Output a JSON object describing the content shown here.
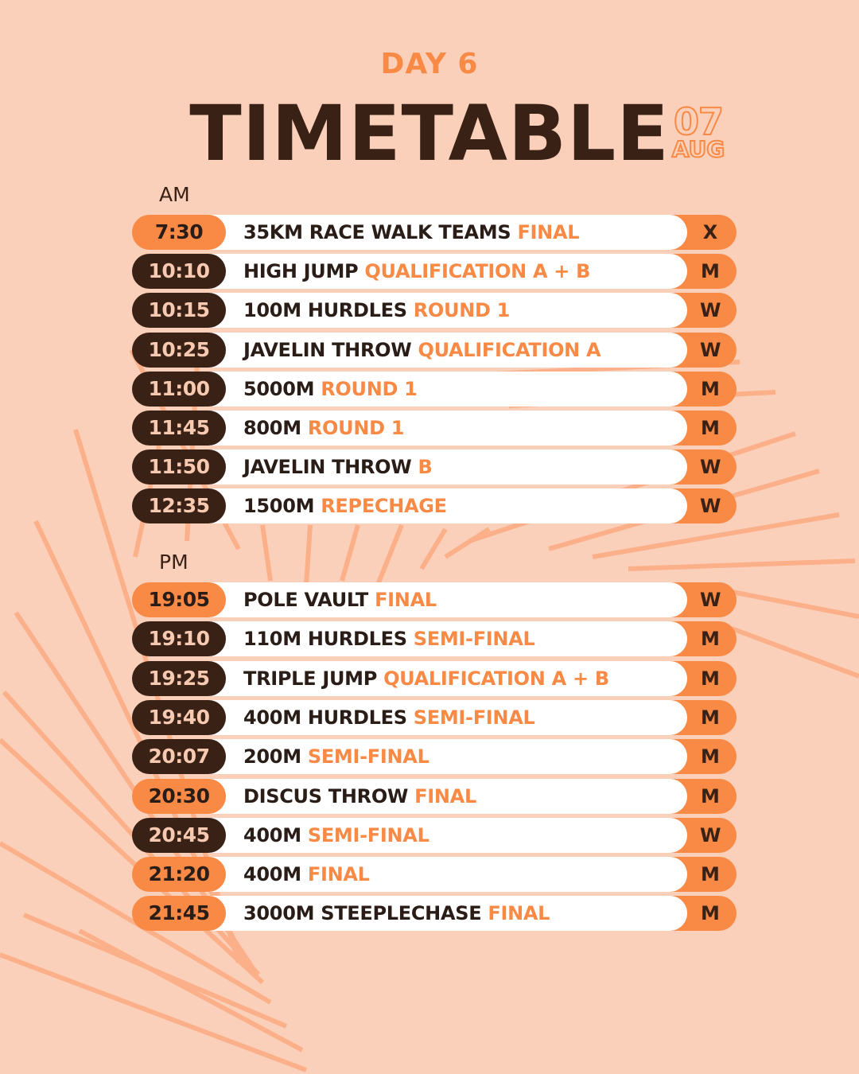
{
  "header": {
    "day": "DAY 6",
    "title": "TIMETABLE",
    "date_day": "07",
    "date_month": "AUG"
  },
  "colors": {
    "background": "#fbd0ba",
    "accent": "#f88a45",
    "dark": "#3a2116",
    "white": "#ffffff"
  },
  "am": {
    "label": "AM",
    "rows": [
      {
        "time": "7:30",
        "event": "35KM RACE WALK TEAMS",
        "stage": "FINAL",
        "category": "X",
        "highlight": true
      },
      {
        "time": "10:10",
        "event": "HIGH JUMP",
        "stage": "QUALIFICATION A + B",
        "category": "M",
        "highlight": false
      },
      {
        "time": "10:15",
        "event": "100M HURDLES",
        "stage": "ROUND 1",
        "category": "W",
        "highlight": false
      },
      {
        "time": "10:25",
        "event": "JAVELIN THROW",
        "stage": "QUALIFICATION A",
        "category": "W",
        "highlight": false
      },
      {
        "time": "11:00",
        "event": "5000M",
        "stage": "ROUND 1",
        "category": "M",
        "highlight": false
      },
      {
        "time": "11:45",
        "event": "800M",
        "stage": "ROUND 1",
        "category": "M",
        "highlight": false
      },
      {
        "time": "11:50",
        "event": "JAVELIN THROW",
        "stage": "B",
        "category": "W",
        "highlight": false
      },
      {
        "time": "12:35",
        "event": "1500M",
        "stage": "REPECHAGE",
        "category": "W",
        "highlight": false
      }
    ]
  },
  "pm": {
    "label": "PM",
    "rows": [
      {
        "time": "19:05",
        "event": "POLE VAULT",
        "stage": "FINAL",
        "category": "W",
        "highlight": true
      },
      {
        "time": "19:10",
        "event": "110M HURDLES",
        "stage": "SEMI-FINAL",
        "category": "M",
        "highlight": false
      },
      {
        "time": "19:25",
        "event": "TRIPLE JUMP",
        "stage": "QUALIFICATION A + B",
        "category": "M",
        "highlight": false
      },
      {
        "time": "19:40",
        "event": "400M HURDLES",
        "stage": "SEMI-FINAL",
        "category": "M",
        "highlight": false
      },
      {
        "time": "20:07",
        "event": "200M",
        "stage": "SEMI-FINAL",
        "category": "M",
        "highlight": false
      },
      {
        "time": "20:30",
        "event": "DISCUS THROW",
        "stage": "FINAL",
        "category": "M",
        "highlight": true
      },
      {
        "time": "20:45",
        "event": "400M",
        "stage": "SEMI-FINAL",
        "category": "W",
        "highlight": false
      },
      {
        "time": "21:20",
        "event": "400M",
        "stage": "FINAL",
        "category": "M",
        "highlight": true
      },
      {
        "time": "21:45",
        "event": "3000M STEEPLECHASE",
        "stage": "FINAL",
        "category": "M",
        "highlight": true
      }
    ]
  }
}
